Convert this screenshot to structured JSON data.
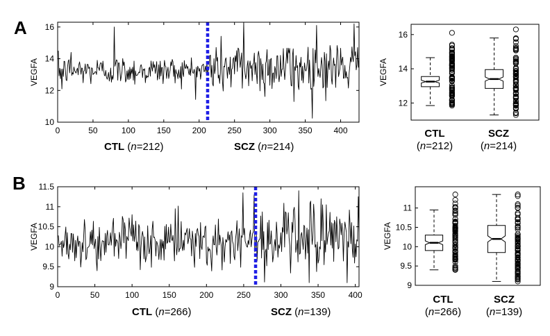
{
  "panels": [
    {
      "letter": "A",
      "ylabel": "VEGFA",
      "series_caption": {
        "ctl_label": "CTL",
        "ctl_n": "212",
        "scz_label": "SCZ",
        "scz_n": "214"
      },
      "box_caption": {
        "ctl_label": "CTL",
        "ctl_n": "212",
        "scz_label": "SCZ",
        "scz_n": "214"
      }
    },
    {
      "letter": "B",
      "ylabel": "VEGFA",
      "series_caption": {
        "ctl_label": "CTL",
        "ctl_n": "266",
        "scz_label": "SCZ",
        "scz_n": "139"
      },
      "box_caption": {
        "ctl_label": "CTL",
        "ctl_n": "266",
        "scz_label": "SCZ",
        "scz_n": "139"
      }
    }
  ],
  "n_prefix": "n",
  "colors": {
    "line": "#000000",
    "divider": "#1f1fe6",
    "axis": "#000000"
  },
  "chart_data": [
    {
      "type": "line",
      "panel": "A",
      "ylabel": "VEGFA",
      "xlim": [
        0,
        426
      ],
      "ylim": [
        10,
        16.3
      ],
      "xticks": [
        0,
        50,
        100,
        150,
        200,
        250,
        300,
        350,
        400
      ],
      "yticks": [
        10,
        12,
        14,
        16
      ],
      "divider_x": 212,
      "ctl": {
        "n": 212,
        "mean": 13.25,
        "sd": 0.45,
        "peaks": [
          [
            79,
            16.0
          ],
          [
            18,
            14.4
          ],
          [
            5,
            12.1
          ]
        ]
      },
      "scz": {
        "n": 214,
        "mean": 13.45,
        "sd": 0.85,
        "peaks": [
          [
            262,
            16.3
          ],
          [
            365,
            16.1
          ],
          [
            418,
            16.2
          ],
          [
            333,
            11.3
          ]
        ]
      }
    },
    {
      "type": "line",
      "panel": "B",
      "ylabel": "VEGFA",
      "xlim": [
        0,
        405
      ],
      "ylim": [
        9,
        11.5
      ],
      "xticks": [
        0,
        50,
        100,
        150,
        200,
        250,
        300,
        350,
        400
      ],
      "yticks": [
        9,
        9.5,
        10,
        10.5,
        11,
        11.5
      ],
      "divider_x": 266,
      "ctl": {
        "n": 266,
        "mean": 10.1,
        "sd": 0.3,
        "peaks": [
          [
            248,
            11.35
          ],
          [
            263,
            11.3
          ],
          [
            157,
            10.95
          ],
          [
            52,
            9.4
          ]
        ]
      },
      "scz": {
        "n": 139,
        "mean": 10.2,
        "sd": 0.45,
        "peaks": [
          [
            353,
            11.2
          ],
          [
            360,
            11.05
          ],
          [
            388,
            9.1
          ]
        ]
      }
    },
    {
      "type": "box",
      "panel": "A",
      "ylabel": "VEGFA",
      "ylim": [
        11,
        16.6
      ],
      "yticks": [
        12,
        14,
        16
      ],
      "categories": [
        "CTL",
        "SCZ"
      ],
      "boxes": [
        {
          "name": "CTL",
          "whisker_low": 11.85,
          "q1": 12.95,
          "median": 13.25,
          "q3": 13.55,
          "whisker_high": 14.65,
          "notch": 0.08,
          "outlier_low": 11.85,
          "outlier_high": 16.1
        },
        {
          "name": "SCZ",
          "whisker_low": 11.3,
          "q1": 12.85,
          "median": 13.4,
          "q3": 13.95,
          "whisker_high": 15.8,
          "notch": 0.12,
          "outlier_low": 11.3,
          "outlier_high": 16.3
        }
      ]
    },
    {
      "type": "box",
      "panel": "B",
      "ylabel": "VEGFA",
      "ylim": [
        9,
        11.55
      ],
      "yticks": [
        9,
        9.5,
        10,
        10.5,
        11
      ],
      "categories": [
        "CTL",
        "SCZ"
      ],
      "boxes": [
        {
          "name": "CTL",
          "whisker_low": 9.4,
          "q1": 9.9,
          "median": 10.1,
          "q3": 10.3,
          "whisker_high": 10.95,
          "notch": 0.05,
          "outlier_low": 9.4,
          "outlier_high": 11.35
        },
        {
          "name": "SCZ",
          "whisker_low": 9.1,
          "q1": 9.85,
          "median": 10.2,
          "q3": 10.55,
          "whisker_high": 11.35,
          "notch": 0.08,
          "outlier_low": 9.1,
          "outlier_high": 11.35
        }
      ]
    }
  ]
}
